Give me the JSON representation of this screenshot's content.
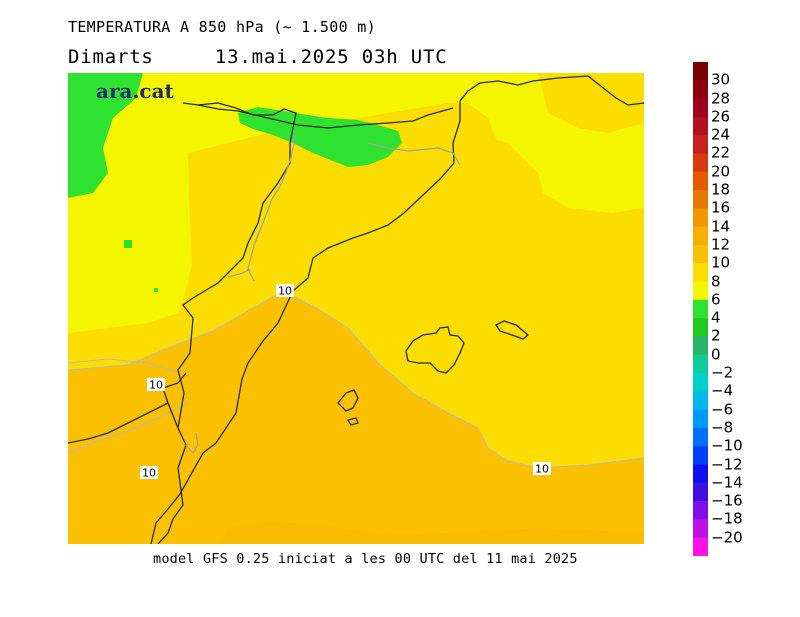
{
  "header": {
    "title": "TEMPERATURA A 850 hPa (~ 1.500 m)",
    "day": "Dimarts",
    "datetime": "13.mai.2025 03h UTC"
  },
  "map": {
    "logo": "ara.cat",
    "contour_value": "10",
    "fill_colors": {
      "above_10": "#fbc100",
      "8_to_10": "#fbdd00",
      "6_to_8": "#f5f500",
      "4_to_6": "#2fe22f",
      "2_to_4": "#22c822"
    },
    "coast_color": "#2a2a2a",
    "border_color": "#a0a0a0"
  },
  "footer": {
    "caption": "model GFS 0.25 iniciat a les 00 UTC del 11 mai 2025"
  },
  "legend": {
    "labels": [
      "30",
      "28",
      "26",
      "24",
      "22",
      "20",
      "18",
      "16",
      "14",
      "12",
      "10",
      "8",
      "6",
      "4",
      "2",
      "0",
      "-2",
      "-4",
      "-6",
      "-8",
      "-10",
      "-12",
      "-14",
      "-16",
      "-18",
      "-20"
    ],
    "colors": [
      "#7a0000",
      "#8c0010",
      "#a00020",
      "#b41020",
      "#c82020",
      "#d83a10",
      "#e45a00",
      "#e87800",
      "#f09600",
      "#f6ae00",
      "#fbc100",
      "#fbdd00",
      "#f5f500",
      "#2fe22f",
      "#22c822",
      "#2ab46a",
      "#10cc99",
      "#00d0cc",
      "#00b8ee",
      "#0099ff",
      "#0070ff",
      "#0040ff",
      "#1010ee",
      "#4010e0",
      "#8010e8",
      "#c010e8",
      "#ff10e8"
    ]
  }
}
